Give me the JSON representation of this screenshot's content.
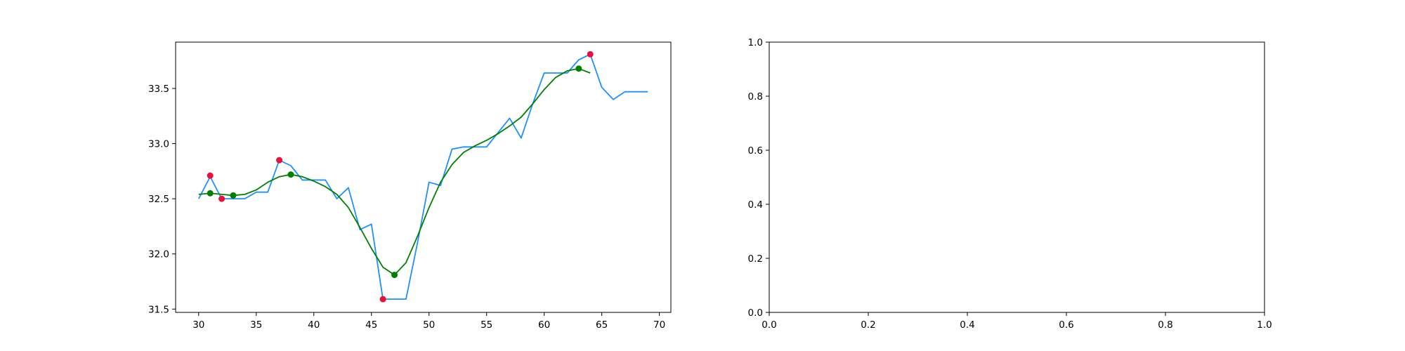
{
  "chart_data": [
    {
      "type": "line",
      "xlim": [
        28,
        71
      ],
      "ylim": [
        31.47,
        33.92
      ],
      "x_ticks": [
        30,
        35,
        40,
        45,
        50,
        55,
        60,
        65,
        70
      ],
      "y_ticks": [
        31.5,
        32.0,
        32.5,
        33.0,
        33.5
      ],
      "x_tick_labels": [
        "30",
        "35",
        "40",
        "45",
        "50",
        "55",
        "60",
        "65",
        "70"
      ],
      "y_tick_labels": [
        "31.5",
        "32.0",
        "32.5",
        "33.0",
        "33.5"
      ],
      "grid": false,
      "series": [
        {
          "style": "line",
          "color": "#1e90ff",
          "x": [
            30,
            31,
            32,
            33,
            34,
            35,
            36,
            37,
            38,
            39,
            40,
            41,
            42,
            43,
            44,
            45,
            46,
            47,
            48,
            49,
            50,
            51,
            52,
            53,
            54,
            55,
            56,
            57,
            58,
            59,
            60,
            61,
            62,
            63,
            64,
            65,
            66,
            67,
            68,
            69
          ],
          "y": [
            32.5,
            32.7,
            32.5,
            32.5,
            32.5,
            32.56,
            32.56,
            32.85,
            32.8,
            32.67,
            32.67,
            32.67,
            32.5,
            32.6,
            32.22,
            32.27,
            31.59,
            31.59,
            31.59,
            32.1,
            32.65,
            32.62,
            32.95,
            32.97,
            32.97,
            32.97,
            33.1,
            33.23,
            33.05,
            33.36,
            33.64,
            33.64,
            33.64,
            33.76,
            33.81,
            33.51,
            33.4,
            33.47,
            33.47,
            33.47
          ]
        },
        {
          "style": "line",
          "color": "#008000",
          "x": [
            30,
            31,
            32,
            33,
            34,
            35,
            36,
            37,
            38,
            39,
            40,
            41,
            42,
            43,
            44,
            45,
            46,
            47,
            48,
            49,
            50,
            51,
            52,
            53,
            54,
            55,
            56,
            57,
            58,
            59,
            60,
            61,
            62,
            63,
            64
          ],
          "y": [
            32.54,
            32.55,
            32.54,
            32.53,
            32.54,
            32.58,
            32.65,
            32.7,
            32.72,
            32.7,
            32.66,
            32.61,
            32.54,
            32.42,
            32.24,
            32.05,
            31.88,
            31.81,
            31.92,
            32.16,
            32.42,
            32.65,
            32.81,
            32.92,
            32.98,
            33.03,
            33.09,
            33.16,
            33.24,
            33.36,
            33.49,
            33.6,
            33.66,
            33.68,
            33.64
          ]
        },
        {
          "style": "points",
          "color": "#e8103c",
          "x": [
            31,
            32,
            37,
            46,
            64
          ],
          "y": [
            32.71,
            32.5,
            32.85,
            31.59,
            33.81
          ]
        },
        {
          "style": "points",
          "color": "#008000",
          "x": [
            31,
            33,
            38,
            47,
            63
          ],
          "y": [
            32.55,
            32.53,
            32.72,
            31.81,
            33.68
          ]
        }
      ]
    },
    {
      "type": "line",
      "xlim": [
        0,
        1
      ],
      "ylim": [
        0,
        1
      ],
      "x_ticks": [
        0,
        0.2,
        0.4,
        0.6,
        0.8,
        1.0
      ],
      "y_ticks": [
        0,
        0.2,
        0.4,
        0.6,
        0.8,
        1.0
      ],
      "x_tick_labels": [
        "0.0",
        "0.2",
        "0.4",
        "0.6",
        "0.8",
        "1.0"
      ],
      "y_tick_labels": [
        "0.0",
        "0.2",
        "0.4",
        "0.6",
        "0.8",
        "1.0"
      ],
      "grid": false,
      "series": []
    }
  ]
}
